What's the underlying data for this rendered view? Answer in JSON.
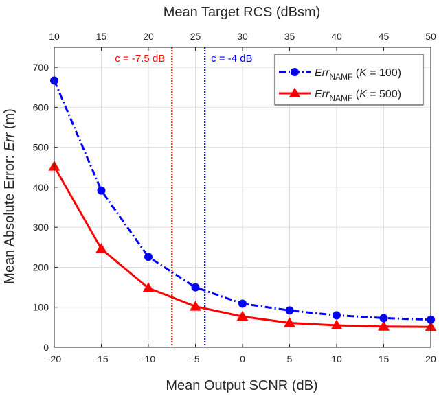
{
  "chart_data": {
    "type": "line",
    "x_label": "Mean Output SCNR (dB)",
    "x_top_label": "Mean Target RCS (dBsm)",
    "y_label_prefix": "Mean Absolute Error: ",
    "y_label_var": "Err",
    "y_label_suffix": " (m)",
    "x_range": [
      -20,
      20
    ],
    "y_range": [
      0,
      750
    ],
    "x_ticks": [
      -20,
      -15,
      -10,
      -5,
      0,
      5,
      10,
      15,
      20
    ],
    "y_ticks": [
      0,
      100,
      200,
      300,
      400,
      500,
      600,
      700
    ],
    "x_top_ticks": [
      10,
      15,
      20,
      25,
      30,
      35,
      40,
      45,
      50
    ],
    "grid": true,
    "legend_position": "top-right",
    "x": [
      -20,
      -15,
      -10,
      -5,
      0,
      5,
      10,
      15,
      20
    ],
    "series": [
      {
        "name_main": "Err",
        "name_sub": "NAMF",
        "name_param": "K",
        "name_value": " = 100)",
        "color": "#0000ff",
        "marker": "circle",
        "line_style": "dash-dot",
        "values": [
          667,
          392,
          226,
          150,
          109,
          92,
          80,
          73,
          69
        ]
      },
      {
        "name_main": "Err",
        "name_sub": "NAMF",
        "name_param": "K",
        "name_value": " = 500)",
        "color": "#ff0000",
        "marker": "triangle",
        "line_style": "solid",
        "values": [
          452,
          246,
          148,
          102,
          77,
          61,
          55,
          52,
          51
        ]
      }
    ],
    "vlines": [
      {
        "x": -7.5,
        "label": "c = -7.5 dB",
        "color": "#ff0000"
      },
      {
        "x": -4,
        "label": "c = -4 dB",
        "color": "#0000ff"
      }
    ]
  }
}
